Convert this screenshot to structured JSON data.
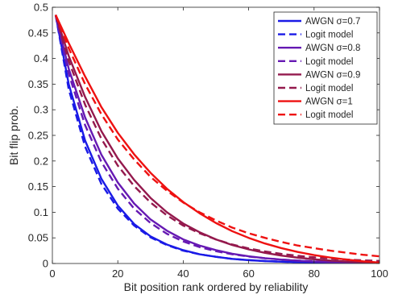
{
  "chart_data": {
    "type": "line",
    "title": "",
    "xlabel": "Bit position rank ordered by reliability",
    "ylabel": "Bit flip prob.",
    "xlim": [
      0,
      100
    ],
    "ylim": [
      0,
      0.5
    ],
    "xticks": [
      0,
      20,
      40,
      60,
      80,
      100
    ],
    "xtick_labels": [
      "0",
      "20",
      "40",
      "60",
      "80",
      "100"
    ],
    "yticks": [
      0,
      0.05,
      0.1,
      0.15,
      0.2,
      0.25,
      0.3,
      0.35,
      0.4,
      0.45,
      0.5
    ],
    "ytick_labels": [
      "0",
      "0.05",
      "0.1",
      "0.15",
      "0.2",
      "0.25",
      "0.3",
      "0.35",
      "0.4",
      "0.45",
      "0.5"
    ],
    "grid": false,
    "legend_position": "top-right",
    "x": [
      1,
      5,
      10,
      15,
      20,
      25,
      30,
      35,
      40,
      45,
      50,
      55,
      60,
      65,
      70,
      75,
      80,
      85,
      90,
      95,
      100
    ],
    "series": [
      {
        "name": "AWGN σ=0.7",
        "color": "#1a1ae6",
        "dash": "solid",
        "values": [
          0.485,
          0.35,
          0.24,
          0.165,
          0.113,
          0.077,
          0.053,
          0.037,
          0.026,
          0.018,
          0.013,
          0.009,
          0.0065,
          0.0047,
          0.0034,
          0.0025,
          0.0018,
          0.0012,
          0.0008,
          0.0005,
          0.0003
        ]
      },
      {
        "name": "Logit model",
        "color": "#1a1ae6",
        "dash": "dashed",
        "values": [
          0.485,
          0.34,
          0.228,
          0.155,
          0.107,
          0.074,
          0.051,
          0.036,
          0.025,
          0.018,
          0.013,
          0.009,
          0.0066,
          0.0048,
          0.0035,
          0.0026,
          0.0019,
          0.0014,
          0.001,
          0.0007,
          0.0005
        ]
      },
      {
        "name": "AWGN σ=0.8",
        "color": "#6619b3",
        "dash": "solid",
        "values": [
          0.485,
          0.38,
          0.285,
          0.212,
          0.158,
          0.117,
          0.086,
          0.064,
          0.047,
          0.035,
          0.026,
          0.019,
          0.014,
          0.0103,
          0.0075,
          0.0054,
          0.0038,
          0.0026,
          0.0017,
          0.001,
          0.0005
        ]
      },
      {
        "name": "Logit model",
        "color": "#6619b3",
        "dash": "dashed",
        "values": [
          0.485,
          0.37,
          0.27,
          0.198,
          0.146,
          0.107,
          0.079,
          0.058,
          0.043,
          0.032,
          0.024,
          0.018,
          0.0135,
          0.0102,
          0.0077,
          0.0058,
          0.0044,
          0.0033,
          0.0025,
          0.0019,
          0.0014
        ]
      },
      {
        "name": "AWGN σ=0.9",
        "color": "#94194d",
        "dash": "solid",
        "values": [
          0.485,
          0.405,
          0.325,
          0.258,
          0.205,
          0.163,
          0.128,
          0.1,
          0.078,
          0.061,
          0.047,
          0.036,
          0.0275,
          0.0208,
          0.0155,
          0.0114,
          0.0082,
          0.0057,
          0.0038,
          0.0023,
          0.0012
        ]
      },
      {
        "name": "Logit model",
        "color": "#94194d",
        "dash": "dashed",
        "values": [
          0.485,
          0.395,
          0.31,
          0.243,
          0.191,
          0.151,
          0.119,
          0.094,
          0.074,
          0.059,
          0.047,
          0.037,
          0.0295,
          0.0235,
          0.0188,
          0.015,
          0.012,
          0.0096,
          0.0077,
          0.0062,
          0.005
        ]
      },
      {
        "name": "AWGN σ=1",
        "color": "#ee1111",
        "dash": "solid",
        "values": [
          0.485,
          0.43,
          0.365,
          0.305,
          0.255,
          0.213,
          0.177,
          0.146,
          0.12,
          0.098,
          0.079,
          0.063,
          0.05,
          0.039,
          0.03,
          0.0225,
          0.0165,
          0.0115,
          0.0075,
          0.0042,
          0.0018
        ]
      },
      {
        "name": "Logit model",
        "color": "#ee1111",
        "dash": "dashed",
        "values": [
          0.485,
          0.42,
          0.35,
          0.291,
          0.242,
          0.203,
          0.169,
          0.142,
          0.119,
          0.1,
          0.084,
          0.07,
          0.059,
          0.05,
          0.042,
          0.035,
          0.03,
          0.025,
          0.021,
          0.017,
          0.014
        ]
      }
    ]
  }
}
